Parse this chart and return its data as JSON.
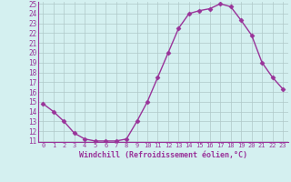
{
  "x": [
    0,
    1,
    2,
    3,
    4,
    5,
    6,
    7,
    8,
    9,
    10,
    11,
    12,
    13,
    14,
    15,
    16,
    17,
    18,
    19,
    20,
    21,
    22,
    23
  ],
  "y": [
    14.8,
    14.0,
    13.0,
    11.8,
    11.2,
    11.0,
    11.0,
    11.0,
    11.2,
    13.0,
    15.0,
    17.5,
    20.0,
    22.5,
    24.0,
    24.3,
    24.5,
    25.0,
    24.7,
    23.3,
    21.8,
    19.0,
    17.5,
    16.3
  ],
  "line_color": "#993399",
  "marker": "D",
  "marker_size": 2.5,
  "bg_color": "#d4f0f0",
  "grid_color": "#b0c8c8",
  "xlabel": "Windchill (Refroidissement éolien,°C)",
  "xlabel_color": "#993399",
  "tick_color": "#993399",
  "ylim": [
    11,
    25
  ],
  "xlim": [
    -0.5,
    23.5
  ],
  "yticks": [
    11,
    12,
    13,
    14,
    15,
    16,
    17,
    18,
    19,
    20,
    21,
    22,
    23,
    24,
    25
  ],
  "xticks": [
    0,
    1,
    2,
    3,
    4,
    5,
    6,
    7,
    8,
    9,
    10,
    11,
    12,
    13,
    14,
    15,
    16,
    17,
    18,
    19,
    20,
    21,
    22,
    23
  ]
}
